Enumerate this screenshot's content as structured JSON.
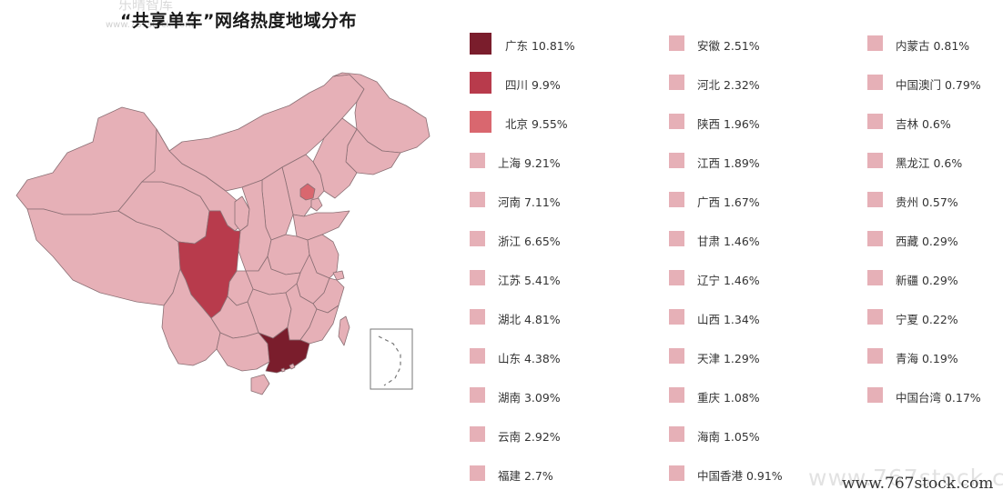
{
  "header": {
    "title": "“共享单车”网络热度地域分布",
    "watermark_top": "乐晴智库",
    "watermark_top_url": "www.767stock.com",
    "watermark_bottom": "www.767stock.com"
  },
  "chart_data": {
    "type": "choropleth-map",
    "title": "“共享单车”网络热度地域分布",
    "unit": "%",
    "regions": [
      {
        "name": "广东",
        "value": 10.81,
        "label": "10.81%",
        "color": "#7a1d2c",
        "map": "guangdong"
      },
      {
        "name": "四川",
        "value": 9.9,
        "label": "9.9%",
        "color": "#b83b4c",
        "map": "sichuan"
      },
      {
        "name": "北京",
        "value": 9.55,
        "label": "9.55%",
        "color": "#d9676f",
        "map": "beijing"
      },
      {
        "name": "上海",
        "value": 9.21,
        "label": "9.21%",
        "color": "#e6b0b7",
        "map": "shanghai"
      },
      {
        "name": "河南",
        "value": 7.11,
        "label": "7.11%",
        "color": "#e6b0b7",
        "map": "henan"
      },
      {
        "name": "浙江",
        "value": 6.65,
        "label": "6.65%",
        "color": "#e6b0b7",
        "map": "zhejiang"
      },
      {
        "name": "江苏",
        "value": 5.41,
        "label": "5.41%",
        "color": "#e6b0b7",
        "map": "jiangsu"
      },
      {
        "name": "湖北",
        "value": 4.81,
        "label": "4.81%",
        "color": "#e6b0b7",
        "map": "hubei"
      },
      {
        "name": "山东",
        "value": 4.38,
        "label": "4.38%",
        "color": "#e6b0b7",
        "map": "shandong"
      },
      {
        "name": "湖南",
        "value": 3.09,
        "label": "3.09%",
        "color": "#e6b0b7",
        "map": "hunan"
      },
      {
        "name": "云南",
        "value": 2.92,
        "label": "2.92%",
        "color": "#e6b0b7",
        "map": "yunnan"
      },
      {
        "name": "福建",
        "value": 2.7,
        "label": "2.7%",
        "color": "#e6b0b7",
        "map": "fujian"
      },
      {
        "name": "安徽",
        "value": 2.51,
        "label": "2.51%",
        "color": "#e6b0b7",
        "map": "anhui"
      },
      {
        "name": "河北",
        "value": 2.32,
        "label": "2.32%",
        "color": "#e6b0b7",
        "map": "hebei"
      },
      {
        "name": "陕西",
        "value": 1.96,
        "label": "1.96%",
        "color": "#e6b0b7",
        "map": "shaanxi"
      },
      {
        "name": "江西",
        "value": 1.89,
        "label": "1.89%",
        "color": "#e6b0b7",
        "map": "jiangxi"
      },
      {
        "name": "广西",
        "value": 1.67,
        "label": "1.67%",
        "color": "#e6b0b7",
        "map": "guangxi"
      },
      {
        "name": "甘肃",
        "value": 1.46,
        "label": "1.46%",
        "color": "#e6b0b7",
        "map": "gansu"
      },
      {
        "name": "辽宁",
        "value": 1.46,
        "label": "1.46%",
        "color": "#e6b0b7",
        "map": "liaoning"
      },
      {
        "name": "山西",
        "value": 1.34,
        "label": "1.34%",
        "color": "#e6b0b7",
        "map": "shanxi"
      },
      {
        "name": "天津",
        "value": 1.29,
        "label": "1.29%",
        "color": "#e6b0b7",
        "map": "tianjin"
      },
      {
        "name": "重庆",
        "value": 1.08,
        "label": "1.08%",
        "color": "#e6b0b7",
        "map": "chongqing"
      },
      {
        "name": "海南",
        "value": 1.05,
        "label": "1.05%",
        "color": "#e6b0b7",
        "map": "hainan"
      },
      {
        "name": "中国香港",
        "value": 0.91,
        "label": "0.91%",
        "color": "#e6b0b7",
        "map": "hongkong"
      },
      {
        "name": "内蒙古",
        "value": 0.81,
        "label": "0.81%",
        "color": "#e6b0b7",
        "map": "neimenggu"
      },
      {
        "name": "中国澳门",
        "value": 0.79,
        "label": "0.79%",
        "color": "#e6b0b7",
        "map": "macau"
      },
      {
        "name": "吉林",
        "value": 0.6,
        "label": "0.6%",
        "color": "#e6b0b7",
        "map": "jilin"
      },
      {
        "name": "黑龙江",
        "value": 0.6,
        "label": "0.6%",
        "color": "#e6b0b7",
        "map": "heilongjiang"
      },
      {
        "name": "贵州",
        "value": 0.57,
        "label": "0.57%",
        "color": "#e6b0b7",
        "map": "guizhou"
      },
      {
        "name": "西藏",
        "value": 0.29,
        "label": "0.29%",
        "color": "#e6b0b7",
        "map": "xizang"
      },
      {
        "name": "新疆",
        "value": 0.29,
        "label": "0.29%",
        "color": "#e6b0b7",
        "map": "xinjiang"
      },
      {
        "name": "宁夏",
        "value": 0.22,
        "label": "0.22%",
        "color": "#e6b0b7",
        "map": "ningxia"
      },
      {
        "name": "青海",
        "value": 0.19,
        "label": "0.19%",
        "color": "#e6b0b7",
        "map": "qinghai"
      },
      {
        "name": "中国台湾",
        "value": 0.17,
        "label": "0.17%",
        "color": "#e6b0b7",
        "map": "taiwan"
      }
    ],
    "legend_columns": 3
  }
}
